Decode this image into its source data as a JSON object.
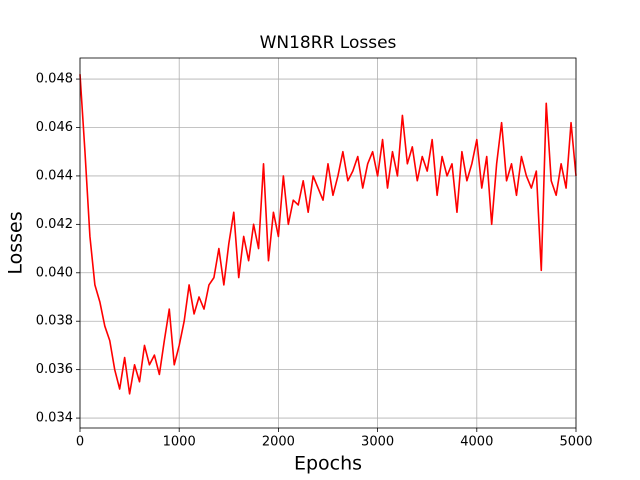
{
  "chart_data": {
    "type": "line",
    "title": "WN18RR Losses",
    "x_label": "Epochs",
    "y_label": "Losses",
    "grid": true,
    "xlim": [
      0,
      5000
    ],
    "ylim": [
      0.03359,
      0.04887
    ],
    "xticks": [
      0,
      1000,
      2000,
      3000,
      4000,
      5000
    ],
    "yticks": [
      0.034,
      0.036,
      0.038,
      {
        "value": 0.04,
        "label": "0.040"
      },
      0.042,
      0.044,
      0.046,
      0.048
    ],
    "x": [
      0,
      50,
      100,
      150,
      200,
      250,
      300,
      350,
      400,
      450,
      500,
      550,
      600,
      650,
      700,
      750,
      800,
      850,
      900,
      950,
      1000,
      1050,
      1100,
      1150,
      1200,
      1250,
      1300,
      1350,
      1400,
      1450,
      1500,
      1550,
      1600,
      1650,
      1700,
      1750,
      1800,
      1850,
      1900,
      1950,
      2000,
      2050,
      2100,
      2150,
      2200,
      2250,
      2300,
      2350,
      2400,
      2450,
      2500,
      2550,
      2600,
      2650,
      2700,
      2750,
      2800,
      2850,
      2900,
      2950,
      3000,
      3050,
      3100,
      3150,
      3200,
      3250,
      3300,
      3350,
      3400,
      3450,
      3500,
      3550,
      3600,
      3650,
      3700,
      3750,
      3800,
      3850,
      3900,
      3950,
      4000,
      4050,
      4100,
      4150,
      4200,
      4250,
      4300,
      4350,
      4400,
      4450,
      4500,
      4550,
      4600,
      4650,
      4700,
      4750,
      4800,
      4850,
      4900,
      4950,
      5000
    ],
    "series": [
      {
        "name": "Losses",
        "color": "#ff0000",
        "values": [
          0.0482,
          0.045,
          0.0415,
          0.0395,
          0.0388,
          0.0378,
          0.0372,
          0.036,
          0.0352,
          0.0365,
          0.035,
          0.0362,
          0.0355,
          0.037,
          0.0362,
          0.0366,
          0.0358,
          0.0372,
          0.0385,
          0.0362,
          0.037,
          0.038,
          0.0395,
          0.0383,
          0.039,
          0.0385,
          0.0395,
          0.0398,
          0.041,
          0.0395,
          0.0412,
          0.0425,
          0.0398,
          0.0415,
          0.0405,
          0.042,
          0.041,
          0.0445,
          0.0405,
          0.0425,
          0.0415,
          0.044,
          0.042,
          0.043,
          0.0428,
          0.0438,
          0.0425,
          0.044,
          0.0435,
          0.043,
          0.0445,
          0.0432,
          0.044,
          0.045,
          0.0438,
          0.0442,
          0.0448,
          0.0435,
          0.0445,
          0.045,
          0.044,
          0.0455,
          0.0435,
          0.045,
          0.044,
          0.0465,
          0.0445,
          0.0452,
          0.0438,
          0.0448,
          0.0442,
          0.0455,
          0.0432,
          0.0448,
          0.044,
          0.0445,
          0.0425,
          0.045,
          0.0438,
          0.0445,
          0.0455,
          0.0435,
          0.0448,
          0.042,
          0.0445,
          0.0462,
          0.0438,
          0.0445,
          0.0432,
          0.0448,
          0.044,
          0.0435,
          0.0442,
          0.0401,
          0.047,
          0.0438,
          0.0432,
          0.0445,
          0.0435,
          0.0462,
          0.044
        ]
      }
    ]
  }
}
